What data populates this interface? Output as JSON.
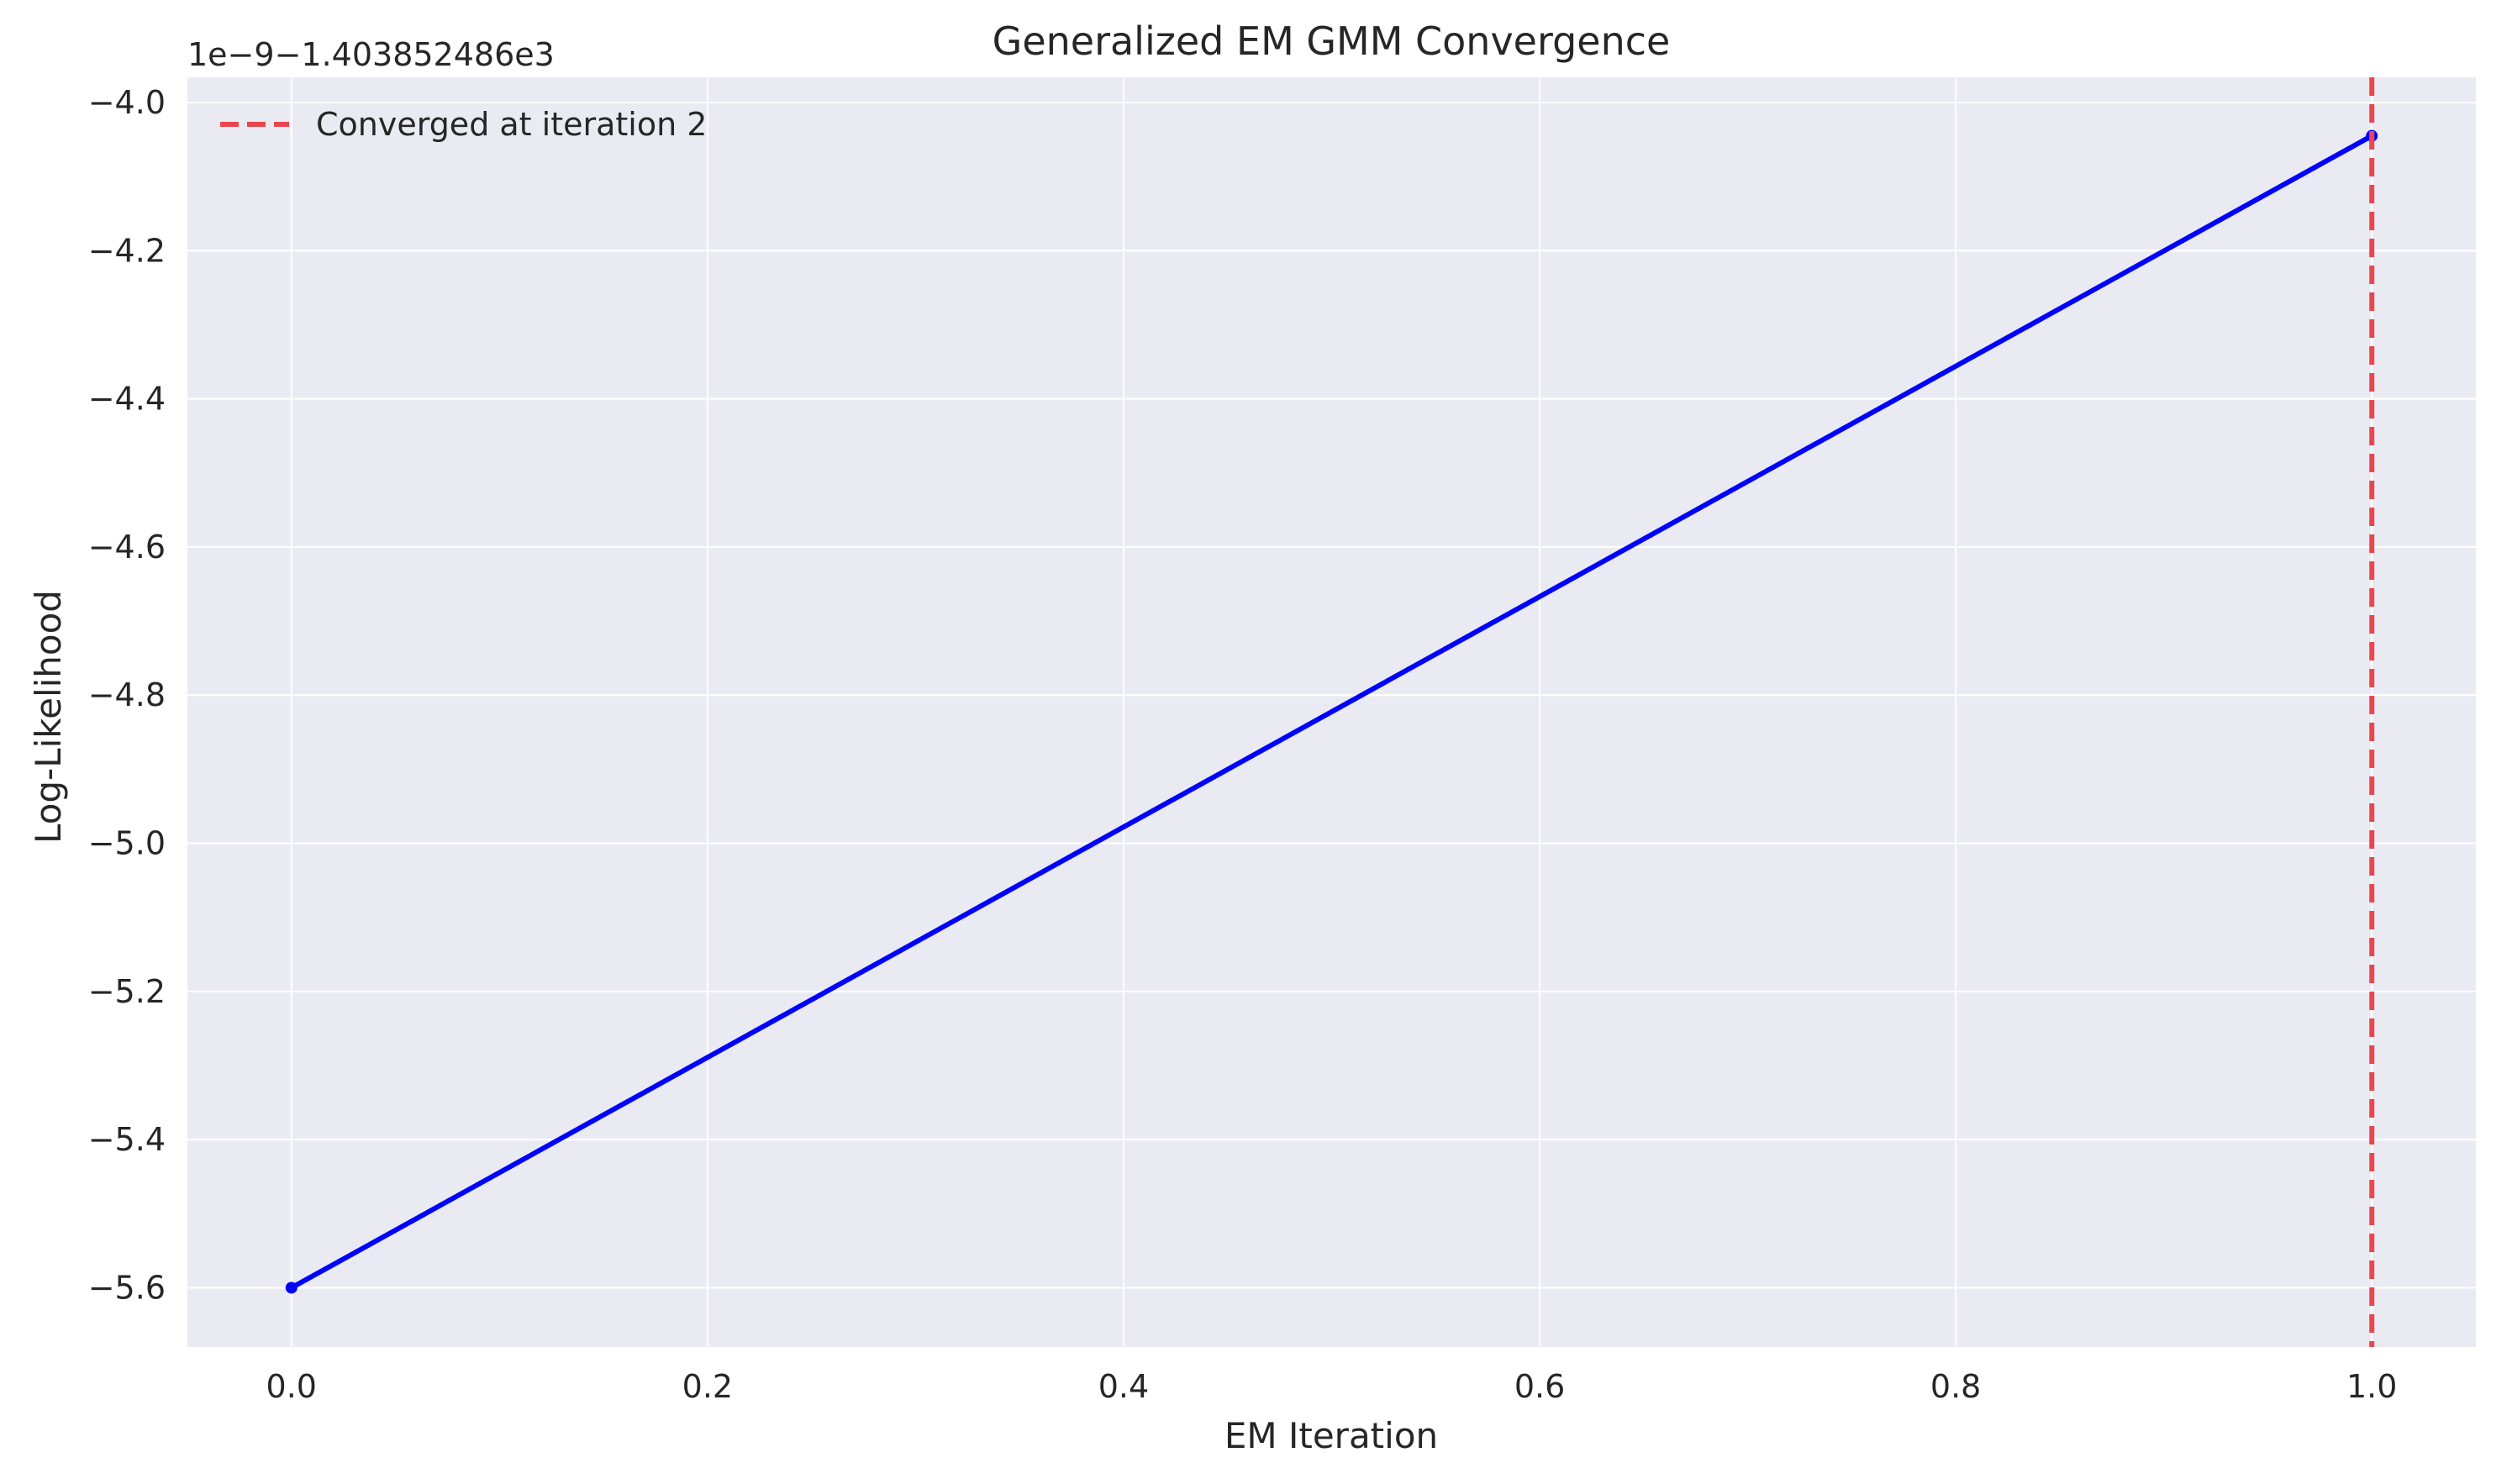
{
  "chart_data": {
    "type": "line",
    "title": "Generalized EM GMM Convergence",
    "xlabel": "EM Iteration",
    "ylabel": "Log-Likelihood",
    "y_offset_label": "1e−9−1.403852486e3",
    "xlim": [
      -0.05,
      1.05
    ],
    "ylim": [
      -5.68,
      -3.966
    ],
    "x_ticks": [
      {
        "value": 0.0,
        "label": "0.0"
      },
      {
        "value": 0.2,
        "label": "0.2"
      },
      {
        "value": 0.4,
        "label": "0.4"
      },
      {
        "value": 0.6,
        "label": "0.6"
      },
      {
        "value": 0.8,
        "label": "0.8"
      },
      {
        "value": 1.0,
        "label": "1.0"
      }
    ],
    "y_ticks": [
      {
        "value": -4.0,
        "label": "−4.0"
      },
      {
        "value": -4.2,
        "label": "−4.2"
      },
      {
        "value": -4.4,
        "label": "−4.4"
      },
      {
        "value": -4.6,
        "label": "−4.6"
      },
      {
        "value": -4.8,
        "label": "−4.8"
      },
      {
        "value": -5.0,
        "label": "−5.0"
      },
      {
        "value": -5.2,
        "label": "−5.2"
      },
      {
        "value": -5.4,
        "label": "−5.4"
      },
      {
        "value": -5.6,
        "label": "−5.6"
      }
    ],
    "series": [
      {
        "x": [
          0,
          1
        ],
        "y": [
          -5.6,
          -4.045
        ],
        "color": "#0000ff"
      }
    ],
    "vline": {
      "x": 1.0,
      "label": "Converged at iteration 2",
      "color": "#e8474d"
    },
    "grid": true,
    "legend": "upper-left",
    "background": "#eaeaf2"
  }
}
